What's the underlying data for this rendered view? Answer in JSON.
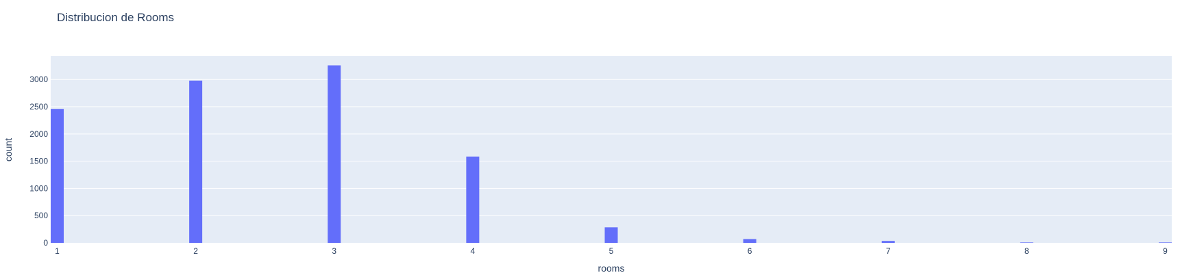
{
  "chart_data": {
    "type": "bar",
    "title": "Distribucion de Rooms",
    "xlabel": "rooms",
    "ylabel": "count",
    "x_range": [
      1,
      9
    ],
    "ylim": [
      0,
      3430
    ],
    "x_ticks": [
      1,
      2,
      3,
      4,
      5,
      6,
      7,
      8,
      9
    ],
    "y_ticks": [
      0,
      500,
      1000,
      1500,
      2000,
      2500,
      3000
    ],
    "grid": true,
    "colors": {
      "bar": "#636efa",
      "plot_bg": "#e5ecf6",
      "grid": "#ffffff",
      "text": "#2a3f5f"
    },
    "series": [
      {
        "x": [
          1,
          2,
          3,
          4,
          5,
          6,
          7,
          8,
          9
        ],
        "values": [
          2460,
          2980,
          3260,
          1585,
          285,
          70,
          35,
          8,
          8
        ]
      }
    ]
  }
}
